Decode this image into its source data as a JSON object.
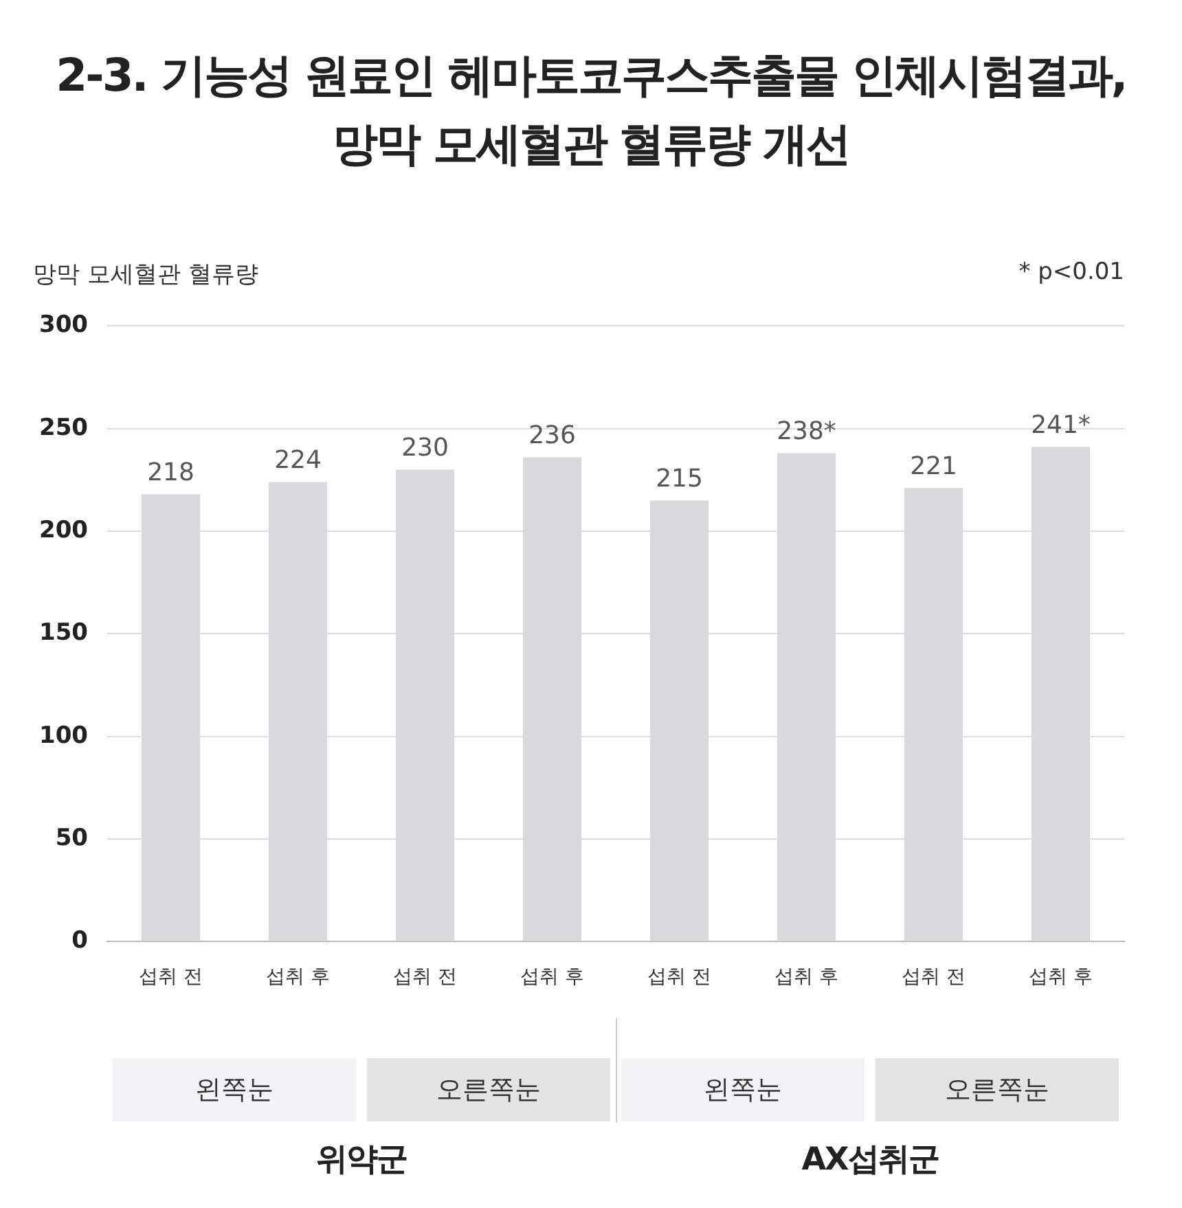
{
  "chart_data": {
    "type": "bar",
    "title": "2-3. 기능성 원료인 헤마토코쿠스추출물 인체시험결과,\n망막 모세혈관 혈류량 개선",
    "ylabel": "망막 모세혈관 혈류량",
    "annotations": [
      "* p<0.01",
      "왼쪽눈",
      "오른쪽눈",
      "왼쪽눈",
      "오른쪽눈",
      "위약군",
      "AX섭취군"
    ],
    "categories": [
      "섭취 전",
      "섭취 후",
      "섭취 전",
      "섭취 후",
      "섭취 전",
      "섭취 후",
      "섭취 전",
      "섭취 후"
    ],
    "values": [
      218,
      224,
      230,
      236,
      215,
      238,
      221,
      241
    ],
    "value_labels": [
      "218",
      "224",
      "230",
      "236",
      "215",
      "238*",
      "221",
      "241*"
    ],
    "color": "#d9d8dd",
    "ylim": [
      0,
      300
    ],
    "yticks": [
      0,
      50,
      100,
      150,
      200,
      250,
      300
    ],
    "grid": "y",
    "legend": false
  }
}
